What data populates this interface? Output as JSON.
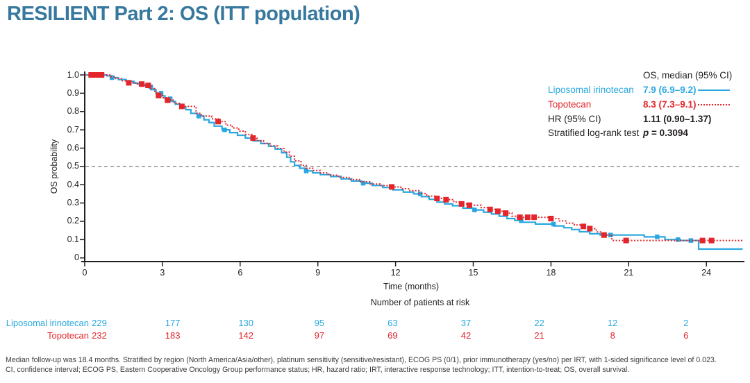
{
  "slide": {
    "title": "RESILIENT Part 2: OS (ITT population)",
    "title_color": "#37789E"
  },
  "legend": {
    "header": "OS, median (95% CI)",
    "rows": [
      {
        "label": "Liposomal irinotecan",
        "value": "7.9 (6.9–9.2)",
        "color": "#29A8E0",
        "sample": "solid"
      },
      {
        "label": "Topotecan",
        "value": "8.3 (7.3–9.1)",
        "color": "#E4262C",
        "sample": "dotted"
      },
      {
        "label": "HR (95% CI)",
        "value": "1.11 (0.90–1.37)"
      },
      {
        "label": "Stratified log-rank test"
      }
    ],
    "p_label": "p",
    "p_value": " = 0.3094"
  },
  "chart_data": {
    "type": "line",
    "subtype": "kaplan-meier-step",
    "title": "",
    "xlabel": "Time (months)",
    "ylabel": "OS probability",
    "xlim": [
      0,
      25.5
    ],
    "ylim": [
      0,
      1.0
    ],
    "xticks": [
      0,
      3,
      6,
      9,
      12,
      15,
      18,
      21,
      24
    ],
    "ytick_labels": [
      "1.0",
      "0.9",
      "0.8",
      "0.7",
      "0.6",
      "0.5",
      "0.4",
      "0.3",
      "0.2",
      "0.1",
      "0"
    ],
    "ytick_values": [
      1.0,
      0.9,
      0.8,
      0.7,
      0.6,
      0.5,
      0.4,
      0.3,
      0.2,
      0.1,
      0
    ],
    "reference_line_y": 0.5,
    "grid": false,
    "legend_position": "upper right",
    "series": [
      {
        "name": "Liposomal irinotecan",
        "median_95ci": "7.9 (6.9–9.2)",
        "color": "#29A8E0",
        "style": "solid",
        "points": [
          [
            0,
            1.0
          ],
          [
            0.85,
            0.995
          ],
          [
            1.05,
            0.985
          ],
          [
            1.3,
            0.975
          ],
          [
            1.6,
            0.965
          ],
          [
            1.9,
            0.955
          ],
          [
            2.1,
            0.948
          ],
          [
            2.35,
            0.935
          ],
          [
            2.55,
            0.92
          ],
          [
            2.75,
            0.9
          ],
          [
            2.95,
            0.885
          ],
          [
            3.1,
            0.87
          ],
          [
            3.3,
            0.855
          ],
          [
            3.5,
            0.84
          ],
          [
            3.7,
            0.825
          ],
          [
            3.9,
            0.81
          ],
          [
            4.1,
            0.79
          ],
          [
            4.35,
            0.775
          ],
          [
            4.6,
            0.755
          ],
          [
            4.8,
            0.74
          ],
          [
            5.0,
            0.72
          ],
          [
            5.3,
            0.7
          ],
          [
            5.6,
            0.685
          ],
          [
            5.9,
            0.67
          ],
          [
            6.2,
            0.655
          ],
          [
            6.5,
            0.64
          ],
          [
            6.8,
            0.625
          ],
          [
            7.1,
            0.61
          ],
          [
            7.35,
            0.595
          ],
          [
            7.6,
            0.575
          ],
          [
            7.8,
            0.55
          ],
          [
            7.95,
            0.525
          ],
          [
            8.1,
            0.505
          ],
          [
            8.3,
            0.49
          ],
          [
            8.5,
            0.475
          ],
          [
            8.8,
            0.465
          ],
          [
            9.1,
            0.455
          ],
          [
            9.5,
            0.445
          ],
          [
            9.9,
            0.432
          ],
          [
            10.3,
            0.42
          ],
          [
            10.7,
            0.408
          ],
          [
            11.1,
            0.396
          ],
          [
            11.5,
            0.385
          ],
          [
            11.9,
            0.372
          ],
          [
            12.3,
            0.36
          ],
          [
            12.7,
            0.35
          ],
          [
            13.0,
            0.335
          ],
          [
            13.3,
            0.32
          ],
          [
            13.6,
            0.305
          ],
          [
            13.9,
            0.295
          ],
          [
            14.2,
            0.285
          ],
          [
            14.6,
            0.272
          ],
          [
            15.0,
            0.262
          ],
          [
            15.4,
            0.25
          ],
          [
            15.7,
            0.24
          ],
          [
            16.0,
            0.228
          ],
          [
            16.3,
            0.215
          ],
          [
            16.6,
            0.205
          ],
          [
            16.8,
            0.195
          ],
          [
            17.4,
            0.185
          ],
          [
            18.1,
            0.175
          ],
          [
            18.5,
            0.165
          ],
          [
            18.8,
            0.155
          ],
          [
            19.1,
            0.143
          ],
          [
            19.5,
            0.132
          ],
          [
            19.9,
            0.125
          ],
          [
            21.6,
            0.115
          ],
          [
            22.4,
            0.1
          ],
          [
            23.0,
            0.095
          ],
          [
            23.7,
            0.048
          ],
          [
            25.4,
            0.048
          ]
        ],
        "censors": [
          [
            1.05,
            0.985
          ],
          [
            2.55,
            0.935
          ],
          [
            2.95,
            0.9
          ],
          [
            3.3,
            0.87
          ],
          [
            4.4,
            0.775
          ],
          [
            5.4,
            0.7
          ],
          [
            8.55,
            0.475
          ],
          [
            10.75,
            0.408
          ],
          [
            12.95,
            0.35
          ],
          [
            15.05,
            0.262
          ],
          [
            16.85,
            0.205
          ],
          [
            18.1,
            0.185
          ],
          [
            20.3,
            0.125
          ],
          [
            22.1,
            0.115
          ],
          [
            22.9,
            0.1
          ],
          [
            23.4,
            0.095
          ]
        ]
      },
      {
        "name": "Topotecan",
        "median_95ci": "8.3 (7.3–9.1)",
        "color": "#E4262C",
        "style": "dotted",
        "points": [
          [
            0,
            1.0
          ],
          [
            1.0,
            0.99
          ],
          [
            1.2,
            0.98
          ],
          [
            1.45,
            0.968
          ],
          [
            1.7,
            0.957
          ],
          [
            2.0,
            0.95
          ],
          [
            2.3,
            0.943
          ],
          [
            2.55,
            0.925
          ],
          [
            2.7,
            0.905
          ],
          [
            2.85,
            0.888
          ],
          [
            3.0,
            0.875
          ],
          [
            3.2,
            0.862
          ],
          [
            3.45,
            0.845
          ],
          [
            3.7,
            0.828
          ],
          [
            4.3,
            0.79
          ],
          [
            4.5,
            0.775
          ],
          [
            4.9,
            0.76
          ],
          [
            5.15,
            0.745
          ],
          [
            5.45,
            0.725
          ],
          [
            5.7,
            0.71
          ],
          [
            5.95,
            0.693
          ],
          [
            6.2,
            0.675
          ],
          [
            6.45,
            0.655
          ],
          [
            6.65,
            0.64
          ],
          [
            6.9,
            0.625
          ],
          [
            7.15,
            0.612
          ],
          [
            7.45,
            0.598
          ],
          [
            7.7,
            0.578
          ],
          [
            7.9,
            0.555
          ],
          [
            8.1,
            0.53
          ],
          [
            8.35,
            0.505
          ],
          [
            8.55,
            0.49
          ],
          [
            8.8,
            0.478
          ],
          [
            9.1,
            0.465
          ],
          [
            9.4,
            0.452
          ],
          [
            9.8,
            0.44
          ],
          [
            10.2,
            0.428
          ],
          [
            10.6,
            0.416
          ],
          [
            11.0,
            0.404
          ],
          [
            11.4,
            0.395
          ],
          [
            11.85,
            0.388
          ],
          [
            12.2,
            0.378
          ],
          [
            12.55,
            0.368
          ],
          [
            12.9,
            0.352
          ],
          [
            13.2,
            0.338
          ],
          [
            13.55,
            0.325
          ],
          [
            13.9,
            0.318
          ],
          [
            14.25,
            0.305
          ],
          [
            14.55,
            0.295
          ],
          [
            14.9,
            0.288
          ],
          [
            15.3,
            0.275
          ],
          [
            15.6,
            0.265
          ],
          [
            15.9,
            0.255
          ],
          [
            16.2,
            0.245
          ],
          [
            16.5,
            0.228
          ],
          [
            16.7,
            0.222
          ],
          [
            17.9,
            0.215
          ],
          [
            18.3,
            0.202
          ],
          [
            18.6,
            0.19
          ],
          [
            18.9,
            0.18
          ],
          [
            19.2,
            0.172
          ],
          [
            19.5,
            0.16
          ],
          [
            19.75,
            0.142
          ],
          [
            19.95,
            0.125
          ],
          [
            20.35,
            0.095
          ],
          [
            25.4,
            0.095
          ]
        ],
        "censors": [
          [
            0.25,
            1.0
          ],
          [
            0.45,
            1.0
          ],
          [
            0.65,
            1.0
          ],
          [
            1.7,
            0.957
          ],
          [
            2.2,
            0.95
          ],
          [
            2.45,
            0.943
          ],
          [
            2.85,
            0.888
          ],
          [
            3.2,
            0.862
          ],
          [
            3.75,
            0.828
          ],
          [
            5.15,
            0.745
          ],
          [
            6.5,
            0.655
          ],
          [
            11.85,
            0.388
          ],
          [
            13.6,
            0.325
          ],
          [
            13.95,
            0.318
          ],
          [
            14.55,
            0.295
          ],
          [
            14.85,
            0.288
          ],
          [
            15.65,
            0.265
          ],
          [
            15.95,
            0.255
          ],
          [
            16.25,
            0.245
          ],
          [
            16.8,
            0.222
          ],
          [
            17.1,
            0.222
          ],
          [
            17.35,
            0.222
          ],
          [
            18.0,
            0.215
          ],
          [
            19.25,
            0.172
          ],
          [
            19.5,
            0.16
          ],
          [
            20.05,
            0.125
          ],
          [
            20.9,
            0.095
          ],
          [
            23.85,
            0.095
          ],
          [
            24.2,
            0.095
          ]
        ]
      }
    ],
    "stats": {
      "hr_label": "HR (95% CI)",
      "hr_value": "1.11 (0.90–1.37)",
      "test_label": "Stratified log-rank test",
      "p_value": "p = 0.3094"
    }
  },
  "at_risk": {
    "header": "Number of patients at risk",
    "time_points": [
      0,
      3,
      6,
      9,
      12,
      15,
      18,
      21,
      24
    ],
    "rows": [
      {
        "label": "Liposomal irinotecan",
        "color": "#29A8E0",
        "counts": [
          229,
          177,
          130,
          95,
          63,
          37,
          22,
          12,
          2
        ]
      },
      {
        "label": "Topotecan",
        "color": "#E4262C",
        "counts": [
          232,
          183,
          142,
          97,
          69,
          42,
          21,
          8,
          6
        ]
      }
    ]
  },
  "footnote": {
    "line1": "Median follow-up was 18.4 months. Stratified by region (North America/Asia/other), platinum sensitivity (sensitive/resistant), ECOG PS (0/1), prior immunotherapy (yes/no) per IRT, with 1-sided significance level of 0.023.",
    "line2": "CI, confidence interval; ECOG PS, Eastern Cooperative Oncology Group performance status; HR, hazard ratio; IRT, interactive response technology; ITT, intention-to-treat; OS, overall survival."
  }
}
